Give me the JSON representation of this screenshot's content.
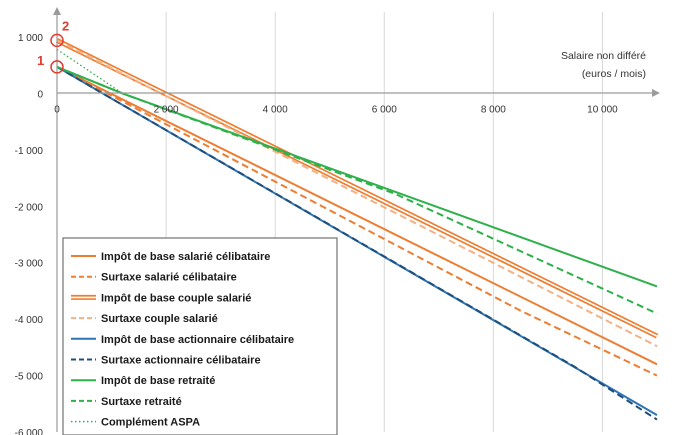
{
  "chart_data": {
    "type": "line",
    "xlabel_line1": "Salaire non différé",
    "xlabel_line2": "(euros / mois)",
    "xlim": [
      0,
      11000
    ],
    "ylim": [
      -6000,
      1000
    ],
    "x_ticks": [
      0,
      2000,
      4000,
      6000,
      8000,
      10000
    ],
    "x_tick_labels": [
      "0",
      "2 000",
      "4 000",
      "6 000",
      "8 000",
      "10 000"
    ],
    "y_ticks": [
      1000,
      0,
      -1000,
      -2000,
      -3000,
      -4000,
      -5000,
      -6000
    ],
    "y_tick_labels": [
      "1 000",
      "0",
      "-1 000",
      "-2 000",
      "-3 000",
      "-4 000",
      "-5 000",
      "-6 000"
    ],
    "grid": "vertical",
    "legend_position": "bottom-left",
    "markers": [
      {
        "label": "1",
        "x": 0,
        "y": 470
      },
      {
        "label": "2",
        "x": 0,
        "y": 940
      }
    ],
    "series": [
      {
        "name": "Impôt de base salarié célibataire",
        "color": "#ed7d31",
        "style": "solid",
        "x": [
          0,
          11000
        ],
        "y": [
          470,
          -4800
        ]
      },
      {
        "name": "Surtaxe salarié célibataire",
        "color": "#ed7d31",
        "style": "dashed",
        "x": [
          0,
          8500,
          11000
        ],
        "y": [
          470,
          -3850,
          -5000
        ]
      },
      {
        "name": "Impôt de base couple salarié",
        "color": "#ed7d31",
        "style": "double",
        "x": [
          0,
          11000
        ],
        "y": [
          940,
          -4300
        ]
      },
      {
        "name": "Surtaxe couple salarié",
        "color": "#f4b183",
        "style": "dashed",
        "x": [
          0,
          8500,
          11000
        ],
        "y": [
          940,
          -3250,
          -4480
        ]
      },
      {
        "name": "Impôt de base actionnaire célibataire",
        "color": "#2e75b6",
        "style": "solid",
        "x": [
          0,
          11000
        ],
        "y": [
          470,
          -5700
        ]
      },
      {
        "name": "Surtaxe actionnaire célibataire",
        "color": "#1f4e79",
        "style": "dashed",
        "x": [
          0,
          9500,
          11000
        ],
        "y": [
          470,
          -4850,
          -5780
        ]
      },
      {
        "name": "Impôt de base retraité",
        "color": "#2eb04b",
        "style": "solid",
        "x": [
          0,
          1200,
          11000
        ],
        "y": [
          470,
          0,
          -3420
        ]
      },
      {
        "name": "Surtaxe retraité",
        "color": "#2eb04b",
        "style": "dashed",
        "x": [
          0,
          1200,
          6200,
          11000
        ],
        "y": [
          470,
          0,
          -1780,
          -3900
        ]
      },
      {
        "name": "Complément ASPA",
        "color": "#2eb04b",
        "style": "dotted",
        "x": [
          0,
          1200
        ],
        "y": [
          780,
          0
        ]
      }
    ]
  }
}
